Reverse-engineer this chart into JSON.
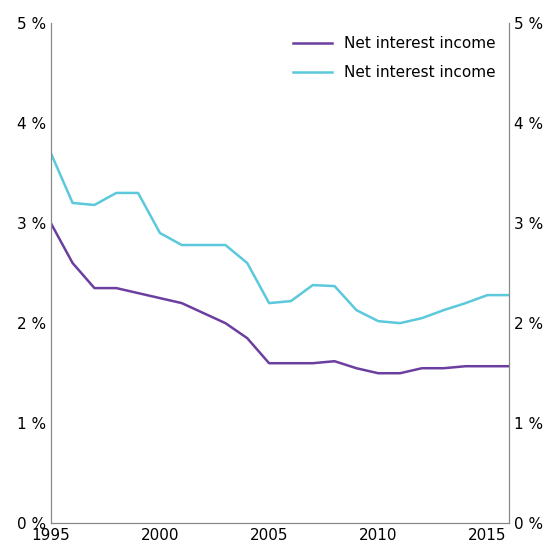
{
  "title": "",
  "purple_line": {
    "label": "Net interest income",
    "color": "#6B3FA0",
    "x": [
      1995,
      1996,
      1997,
      1998,
      1999,
      2000,
      2001,
      2002,
      2003,
      2004,
      2005,
      2006,
      2007,
      2008,
      2009,
      2010,
      2011,
      2012,
      2013,
      2014,
      2015,
      2016
    ],
    "y": [
      3.0,
      2.6,
      2.35,
      2.35,
      2.3,
      2.25,
      2.2,
      2.1,
      2.0,
      1.85,
      1.6,
      1.6,
      1.6,
      1.62,
      1.55,
      1.5,
      1.5,
      1.55,
      1.55,
      1.57,
      1.57,
      1.57
    ]
  },
  "cyan_line": {
    "label": "Net interest income",
    "color": "#5BC8DC",
    "x": [
      1995,
      1996,
      1997,
      1998,
      1999,
      2000,
      2001,
      2002,
      2003,
      2004,
      2005,
      2006,
      2007,
      2008,
      2009,
      2010,
      2011,
      2012,
      2013,
      2014,
      2015,
      2016
    ],
    "y": [
      3.7,
      3.2,
      3.18,
      3.3,
      3.3,
      2.9,
      2.78,
      2.78,
      2.78,
      2.6,
      2.2,
      2.22,
      2.38,
      2.37,
      2.13,
      2.02,
      2.0,
      2.05,
      2.13,
      2.2,
      2.28,
      2.28
    ]
  },
  "ylim": [
    0,
    5
  ],
  "yticks": [
    0,
    1,
    2,
    3,
    4,
    5
  ],
  "xlim": [
    1995,
    2016
  ],
  "xticks": [
    1995,
    2000,
    2005,
    2010,
    2015
  ],
  "background_color": "#ffffff",
  "line_width": 1.8,
  "spine_color": "#888888",
  "tick_fontsize": 11,
  "legend_fontsize": 11
}
